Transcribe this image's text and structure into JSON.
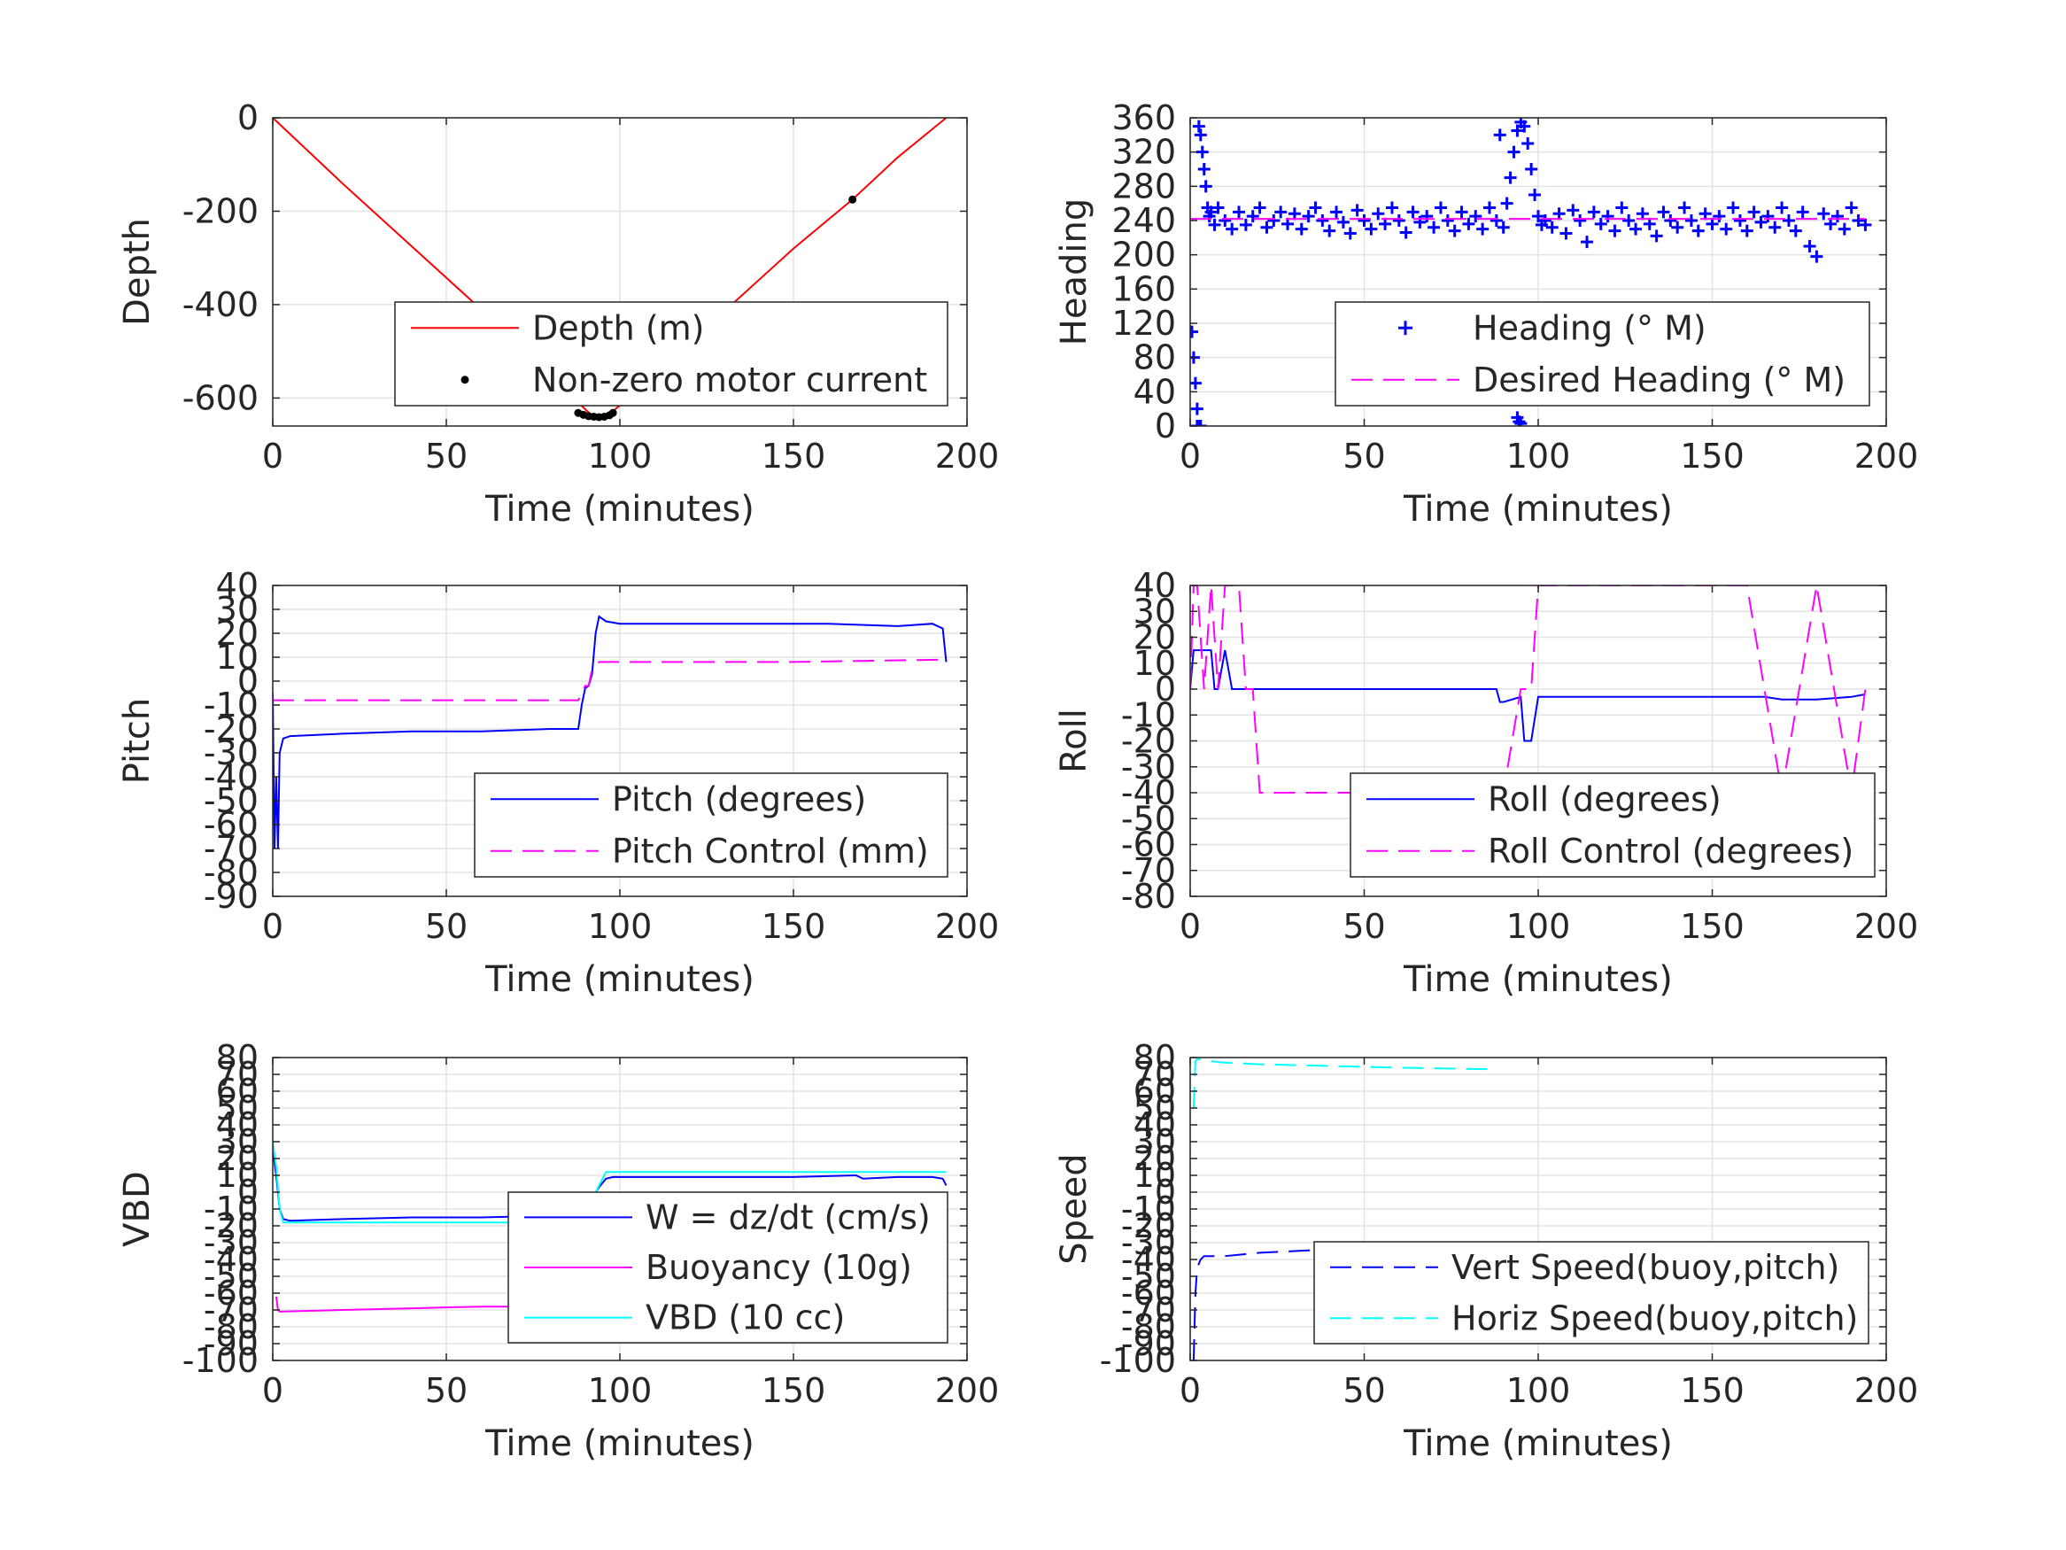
{
  "chart_data": [
    {
      "type": "line",
      "xlabel": "Time (minutes)",
      "ylabel": "Depth",
      "xlim": [
        0,
        200
      ],
      "ylim": [
        -660,
        0
      ],
      "xticks": [
        0,
        50,
        100,
        150,
        200
      ],
      "yticks": [
        0,
        -200,
        -400,
        -600
      ],
      "grid": true,
      "legend_position": "bottom-right",
      "series": [
        {
          "name": "Depth (m)",
          "style": "solid",
          "color": "#ff0000",
          "x": [
            0,
            20,
            40,
            60,
            80,
            88,
            92,
            95,
            98,
            110,
            130,
            150,
            167,
            180,
            194
          ],
          "y": [
            0,
            -140,
            -275,
            -410,
            -550,
            -610,
            -638,
            -640,
            -628,
            -555,
            -415,
            -280,
            -175,
            -85,
            0
          ]
        },
        {
          "name": "Non-zero motor current",
          "style": "points",
          "color": "#000000",
          "x": [
            88,
            89.5,
            91,
            92.5,
            94,
            95.5,
            97,
            98,
            167
          ],
          "y": [
            -632,
            -636,
            -639,
            -640,
            -641,
            -640,
            -637,
            -632,
            -175
          ]
        }
      ]
    },
    {
      "type": "scatter",
      "xlabel": "Time (minutes)",
      "ylabel": "Heading",
      "xlim": [
        0,
        200
      ],
      "ylim": [
        0,
        360
      ],
      "xticks": [
        0,
        50,
        100,
        150,
        200
      ],
      "yticks": [
        0,
        40,
        80,
        120,
        160,
        200,
        240,
        280,
        320,
        360
      ],
      "grid": true,
      "legend_position": "bottom-right",
      "series": [
        {
          "name": "Heading (° M)",
          "style": "plus",
          "color": "#0000ff",
          "x": [
            0.5,
            1,
            1.5,
            2,
            2.5,
            3,
            3.5,
            4,
            4.5,
            5,
            5.5,
            6,
            7,
            8,
            10,
            12,
            14,
            16,
            18,
            20,
            22,
            24,
            26,
            28,
            30,
            32,
            34,
            36,
            38,
            40,
            42,
            44,
            46,
            48,
            50,
            52,
            54,
            56,
            58,
            60,
            62,
            64,
            66,
            68,
            70,
            72,
            74,
            76,
            78,
            80,
            82,
            84,
            86,
            88,
            90,
            91,
            92,
            93,
            94,
            95,
            96,
            97,
            98,
            99,
            100,
            101,
            102,
            104,
            106,
            108,
            110,
            112,
            114,
            116,
            118,
            120,
            122,
            124,
            126,
            128,
            130,
            132,
            134,
            136,
            138,
            140,
            142,
            144,
            146,
            148,
            150,
            152,
            154,
            156,
            158,
            160,
            162,
            164,
            166,
            168,
            170,
            172,
            174,
            176,
            178,
            180,
            182,
            184,
            186,
            188,
            190,
            192,
            194,
            89,
            94,
            94.5,
            95,
            2,
            2.5,
            3
          ],
          "y": [
            110,
            80,
            50,
            20,
            350,
            340,
            320,
            300,
            280,
            255,
            245,
            250,
            235,
            255,
            240,
            230,
            250,
            235,
            245,
            255,
            232,
            240,
            250,
            236,
            248,
            230,
            245,
            255,
            240,
            228,
            250,
            238,
            225,
            252,
            240,
            230,
            248,
            236,
            255,
            240,
            226,
            250,
            238,
            245,
            232,
            255,
            240,
            228,
            250,
            236,
            245,
            230,
            255,
            240,
            232,
            260,
            290,
            320,
            345,
            355,
            350,
            330,
            300,
            270,
            245,
            235,
            240,
            232,
            248,
            225,
            252,
            240,
            215,
            250,
            236,
            245,
            228,
            255,
            240,
            230,
            248,
            236,
            222,
            250,
            240,
            232,
            255,
            240,
            228,
            248,
            236,
            245,
            230,
            255,
            240,
            228,
            250,
            238,
            245,
            232,
            255,
            240,
            228,
            250,
            210,
            198,
            248,
            236,
            245,
            230,
            255,
            240,
            235,
            340,
            10,
            5,
            3,
            0,
            0,
            0
          ]
        },
        {
          "name": "Desired Heading (° M)",
          "style": "dashed",
          "color": "#ff00ff",
          "x": [
            0,
            194
          ],
          "y": [
            242,
            242
          ]
        }
      ]
    },
    {
      "type": "line",
      "xlabel": "Time (minutes)",
      "ylabel": "Pitch",
      "xlim": [
        0,
        200
      ],
      "ylim": [
        -90,
        40
      ],
      "xticks": [
        0,
        50,
        100,
        150,
        200
      ],
      "yticks": [
        -90,
        -80,
        -70,
        -60,
        -50,
        -40,
        -30,
        -20,
        -10,
        0,
        10,
        20,
        30,
        40
      ],
      "grid": true,
      "legend_position": "bottom-right",
      "series": [
        {
          "name": "Pitch (degrees)",
          "style": "solid",
          "color": "#0000ff",
          "x": [
            0,
            0.5,
            1,
            1.5,
            2,
            3,
            5,
            20,
            40,
            60,
            80,
            88,
            89,
            90,
            91,
            92,
            93,
            94,
            96,
            100,
            120,
            140,
            160,
            180,
            190,
            193,
            194
          ],
          "y": [
            -5,
            -70,
            -40,
            -70,
            -30,
            -24,
            -23,
            -22,
            -21,
            -21,
            -20,
            -20,
            -10,
            -3,
            -2,
            3,
            20,
            27,
            25,
            24,
            24,
            24,
            24,
            23,
            24,
            22,
            8
          ]
        },
        {
          "name": "Pitch Control (mm)",
          "style": "dashed",
          "color": "#ff00ff",
          "x": [
            0,
            85,
            88,
            90,
            91,
            92,
            94,
            150,
            194
          ],
          "y": [
            -8,
            -8,
            -8,
            -2,
            -2,
            5,
            8,
            8,
            9
          ]
        }
      ]
    },
    {
      "type": "line",
      "xlabel": "Time (minutes)",
      "ylabel": "Roll",
      "xlim": [
        0,
        200
      ],
      "ylim": [
        -80,
        40
      ],
      "xticks": [
        0,
        50,
        100,
        150,
        200
      ],
      "yticks": [
        -80,
        -70,
        -60,
        -50,
        -40,
        -30,
        -20,
        -10,
        0,
        10,
        20,
        30,
        40
      ],
      "grid": true,
      "legend_position": "bottom-right",
      "series": [
        {
          "name": "Roll (degrees)",
          "style": "solid",
          "color": "#0000ff",
          "x": [
            0,
            1,
            2,
            3,
            6,
            7,
            8,
            10,
            12,
            14,
            18,
            20,
            40,
            60,
            88,
            89,
            90,
            95,
            96,
            98,
            100,
            101,
            120,
            140,
            165,
            170,
            180,
            190,
            194
          ],
          "y": [
            0,
            15,
            15,
            15,
            15,
            0,
            0,
            15,
            0,
            0,
            0,
            0,
            0,
            0,
            0,
            -5,
            -5,
            -3,
            -20,
            -20,
            -3,
            -3,
            -3,
            -3,
            -3,
            -4,
            -4,
            -3,
            -2
          ]
        },
        {
          "name": "Roll Control (degrees)",
          "style": "dashed",
          "color": "#ff00ff",
          "x": [
            0,
            1,
            2,
            4,
            6,
            8,
            10,
            14,
            16,
            18,
            20,
            22,
            40,
            60,
            80,
            90,
            95,
            98,
            100,
            101,
            120,
            140,
            160,
            165,
            170,
            180,
            190,
            194
          ],
          "y": [
            0,
            40,
            40,
            0,
            40,
            0,
            40,
            40,
            0,
            0,
            -40,
            -40,
            -40,
            -40,
            -40,
            -40,
            0,
            0,
            40,
            40,
            40,
            40,
            40,
            0,
            -40,
            40,
            -40,
            0
          ]
        }
      ]
    },
    {
      "type": "line",
      "xlabel": "Time (minutes)",
      "ylabel": "VBD",
      "xlim": [
        0,
        200
      ],
      "ylim": [
        -100,
        80
      ],
      "xticks": [
        0,
        50,
        100,
        150,
        200
      ],
      "yticks": [
        -100,
        -90,
        -80,
        -70,
        -60,
        -50,
        -40,
        -30,
        -20,
        -10,
        0,
        10,
        20,
        30,
        40,
        50,
        60,
        70,
        80
      ],
      "grid": true,
      "legend_position": "bottom-right",
      "series": [
        {
          "name": "W = dz/dt (cm/s)",
          "style": "solid",
          "color": "#0000ff",
          "x": [
            0,
            1,
            2,
            3,
            5,
            20,
            40,
            60,
            80,
            86,
            88,
            90,
            92,
            94,
            96,
            98,
            110,
            130,
            150,
            168,
            170,
            180,
            190,
            193,
            194
          ],
          "y": [
            25,
            10,
            -10,
            -16,
            -17,
            -16,
            -15,
            -15,
            -14,
            -14,
            -13,
            -10,
            -3,
            3,
            8,
            9,
            9,
            9,
            9,
            10,
            8,
            9,
            9,
            8,
            4
          ]
        },
        {
          "name": "Buoyancy (10g)",
          "style": "solid",
          "color": "#ff00ff",
          "x": [
            1,
            1.5,
            2,
            20,
            40,
            60,
            88
          ],
          "y": [
            -62,
            -70,
            -71,
            -70,
            -69,
            -68,
            -68
          ]
        },
        {
          "name": "VBD (10 cc)",
          "style": "solid",
          "color": "#00ffff",
          "x": [
            0,
            1,
            2,
            3,
            5,
            40,
            88,
            90,
            93,
            96,
            120,
            150,
            194
          ],
          "y": [
            30,
            15,
            -10,
            -18,
            -18,
            -18,
            -18,
            -15,
            0,
            12,
            12,
            12,
            12
          ]
        }
      ]
    },
    {
      "type": "line",
      "xlabel": "Time (minutes)",
      "ylabel": "Speed",
      "xlim": [
        0,
        200
      ],
      "ylim": [
        -100,
        80
      ],
      "xticks": [
        0,
        50,
        100,
        150,
        200
      ],
      "yticks": [
        -100,
        -90,
        -80,
        -70,
        -60,
        -50,
        -40,
        -30,
        -20,
        -10,
        0,
        10,
        20,
        30,
        40,
        50,
        60,
        70,
        80
      ],
      "grid": true,
      "legend_position": "bottom-right",
      "series": [
        {
          "name": "Vert Speed(buoy,pitch)",
          "style": "dashed",
          "color": "#0000ff",
          "x": [
            1,
            1.5,
            2,
            3,
            4,
            10,
            20,
            30,
            40,
            60,
            88
          ],
          "y": [
            -100,
            -60,
            -45,
            -40,
            -38,
            -38,
            -36,
            -35,
            -34,
            -34,
            -33
          ]
        },
        {
          "name": "Horiz Speed(buoy,pitch)",
          "style": "dashed",
          "color": "#00ffff",
          "x": [
            1,
            1.5,
            2,
            3,
            5,
            10,
            20,
            40,
            60,
            88
          ],
          "y": [
            50,
            78,
            79,
            79,
            78,
            77,
            76,
            75,
            74,
            73
          ]
        }
      ]
    }
  ]
}
